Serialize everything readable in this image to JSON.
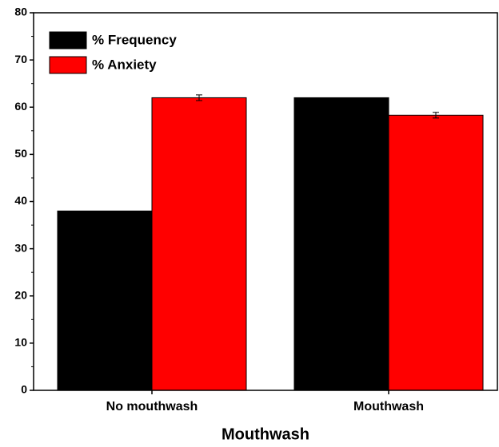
{
  "chart_data": {
    "type": "bar",
    "xlabel": "Mouthwash",
    "categories": [
      "No mouthwash",
      "Mouthwash"
    ],
    "series": [
      {
        "name": "% Frequency",
        "color": "#000000",
        "values": [
          38,
          62
        ]
      },
      {
        "name": "% Anxiety",
        "color": "#ff0000",
        "values": [
          62,
          58.3
        ],
        "errors": [
          0.6,
          0.6
        ]
      }
    ],
    "ylim": [
      0,
      80
    ],
    "yticks": [
      0,
      10,
      20,
      30,
      40,
      50,
      60,
      70,
      80
    ],
    "legend": "upper left"
  }
}
